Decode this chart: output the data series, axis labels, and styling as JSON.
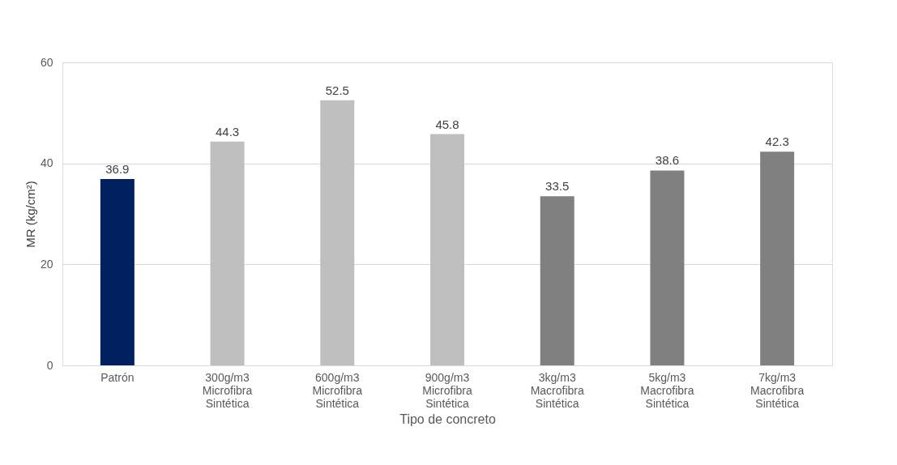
{
  "chart_data": {
    "type": "bar",
    "xlabel": "Tipo de concreto",
    "ylabel": "MR (kg/cm²)",
    "categories": [
      "Patrón",
      "300g/m3\nMicrofibra\nSintética",
      "600g/m3\nMicrofibra\nSintética",
      "900g/m3\nMicrofibra\nSintética",
      "3kg/m3\nMacrofibra\nSintética",
      "5kg/m3\nMacrofibra\nSintética",
      "7kg/m3\nMacrofibra\nSintética"
    ],
    "values": [
      36.9,
      44.3,
      52.5,
      45.8,
      33.5,
      38.6,
      42.3
    ],
    "colors": [
      "#002060",
      "#bfbfbf",
      "#bfbfbf",
      "#bfbfbf",
      "#808080",
      "#808080",
      "#808080"
    ],
    "ylim": [
      0,
      60
    ],
    "yticks": [
      0,
      20,
      40,
      60
    ],
    "grid": "y",
    "data_labels": true
  }
}
